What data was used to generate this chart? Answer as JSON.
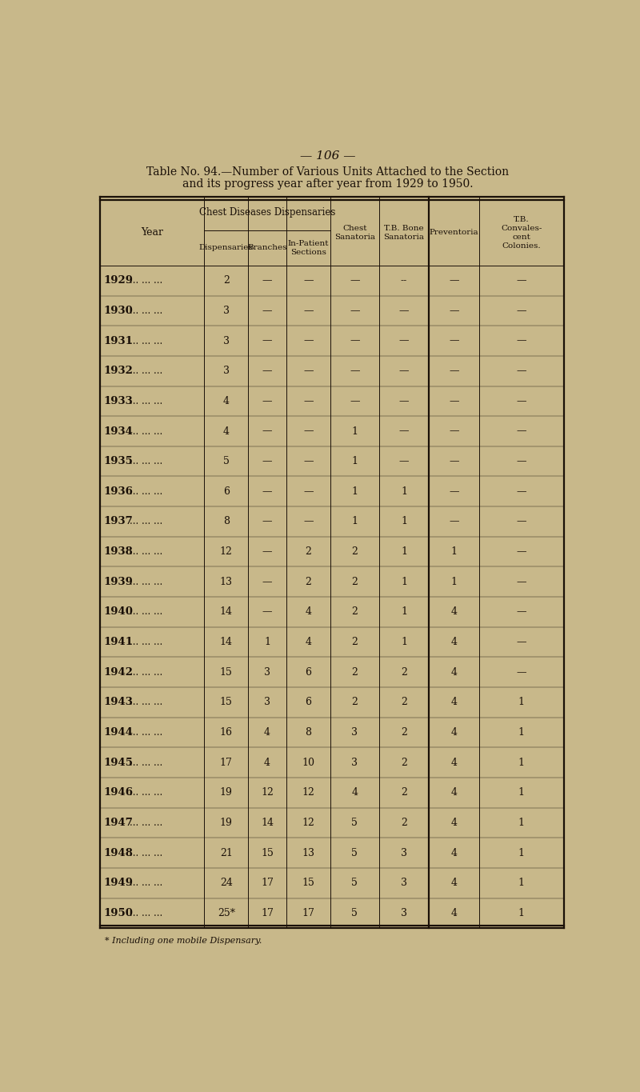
{
  "page_number": "— 106 —",
  "title_line1": "Table No. 94.—Number of Various Units Attached to the Section",
  "title_line2": "and its progress year after year from 1929 to 1950.",
  "col_group_header": "Chest Diseases Dispensaries",
  "footnote": "* Including one mobile Dispensary.",
  "bg_color": "#c8b88a",
  "text_color": "#1a1008",
  "rows": [
    [
      "1929",
      "... ... ...",
      "2",
      "—",
      "—",
      "—",
      "--",
      "—",
      "—"
    ],
    [
      "1930",
      "... ... ...",
      "3",
      "—",
      "—",
      "—",
      "—",
      "—",
      "—"
    ],
    [
      "1931",
      "... ... ...",
      "3",
      "—",
      "—",
      "—",
      "—",
      "—",
      "—"
    ],
    [
      "1932",
      "... ... ...",
      "3",
      "—",
      "—",
      "—",
      "—",
      "—",
      "—"
    ],
    [
      "1933",
      "... ... ...",
      "4",
      "—",
      "—",
      "—",
      "—",
      "—",
      "—"
    ],
    [
      "1934",
      "... ... ...",
      "4",
      "—",
      "—",
      "1",
      "—",
      "—",
      "—"
    ],
    [
      "1935",
      "... ... ...",
      "5",
      "—",
      "—",
      "1",
      "—",
      "—",
      "—"
    ],
    [
      "1936",
      "... ... ...",
      "6",
      "—",
      "—",
      "1",
      "1",
      "—",
      "—"
    ],
    [
      "1937",
      "... ... ...",
      "8",
      "—",
      "—",
      "1",
      "1",
      "—",
      "—"
    ],
    [
      "1938",
      "... ... ...",
      "12",
      "—",
      "2",
      "2",
      "1",
      "1",
      "—"
    ],
    [
      "1939",
      "... ... ...",
      "13",
      "—",
      "2",
      "2",
      "1",
      "1",
      "—"
    ],
    [
      "1940",
      "... ... ...",
      "14",
      "—",
      "4",
      "2",
      "1",
      "4",
      "—"
    ],
    [
      "1941",
      "... ... ...",
      "14",
      "1",
      "4",
      "2",
      "1",
      "4",
      "—"
    ],
    [
      "1942",
      "... ... ...",
      "15",
      "3",
      "6",
      "2",
      "2",
      "4",
      "—"
    ],
    [
      "1943",
      "... ... ...",
      "15",
      "3",
      "6",
      "2",
      "2",
      "4",
      "1"
    ],
    [
      "1944",
      "... ... ...",
      "16",
      "4",
      "8",
      "3",
      "2",
      "4",
      "1"
    ],
    [
      "1945",
      "... ... ...",
      "17",
      "4",
      "10",
      "3",
      "2",
      "4",
      "1"
    ],
    [
      "1946",
      "... ... ...",
      "19",
      "12",
      "12",
      "4",
      "2",
      "4",
      "1"
    ],
    [
      "1947",
      "... ... ...",
      "19",
      "14",
      "12",
      "5",
      "2",
      "4",
      "1"
    ],
    [
      "1948",
      "... ... ...",
      "21",
      "15",
      "13",
      "5",
      "3",
      "4",
      "1"
    ],
    [
      "1949",
      "... ... ...",
      "24",
      "17",
      "15",
      "5",
      "3",
      "4",
      "1"
    ],
    [
      "1950",
      "... ... ...",
      "25*",
      "17",
      "17",
      "5",
      "3",
      "4",
      "1"
    ]
  ],
  "figsize": [
    8.0,
    13.65
  ],
  "dpi": 100
}
